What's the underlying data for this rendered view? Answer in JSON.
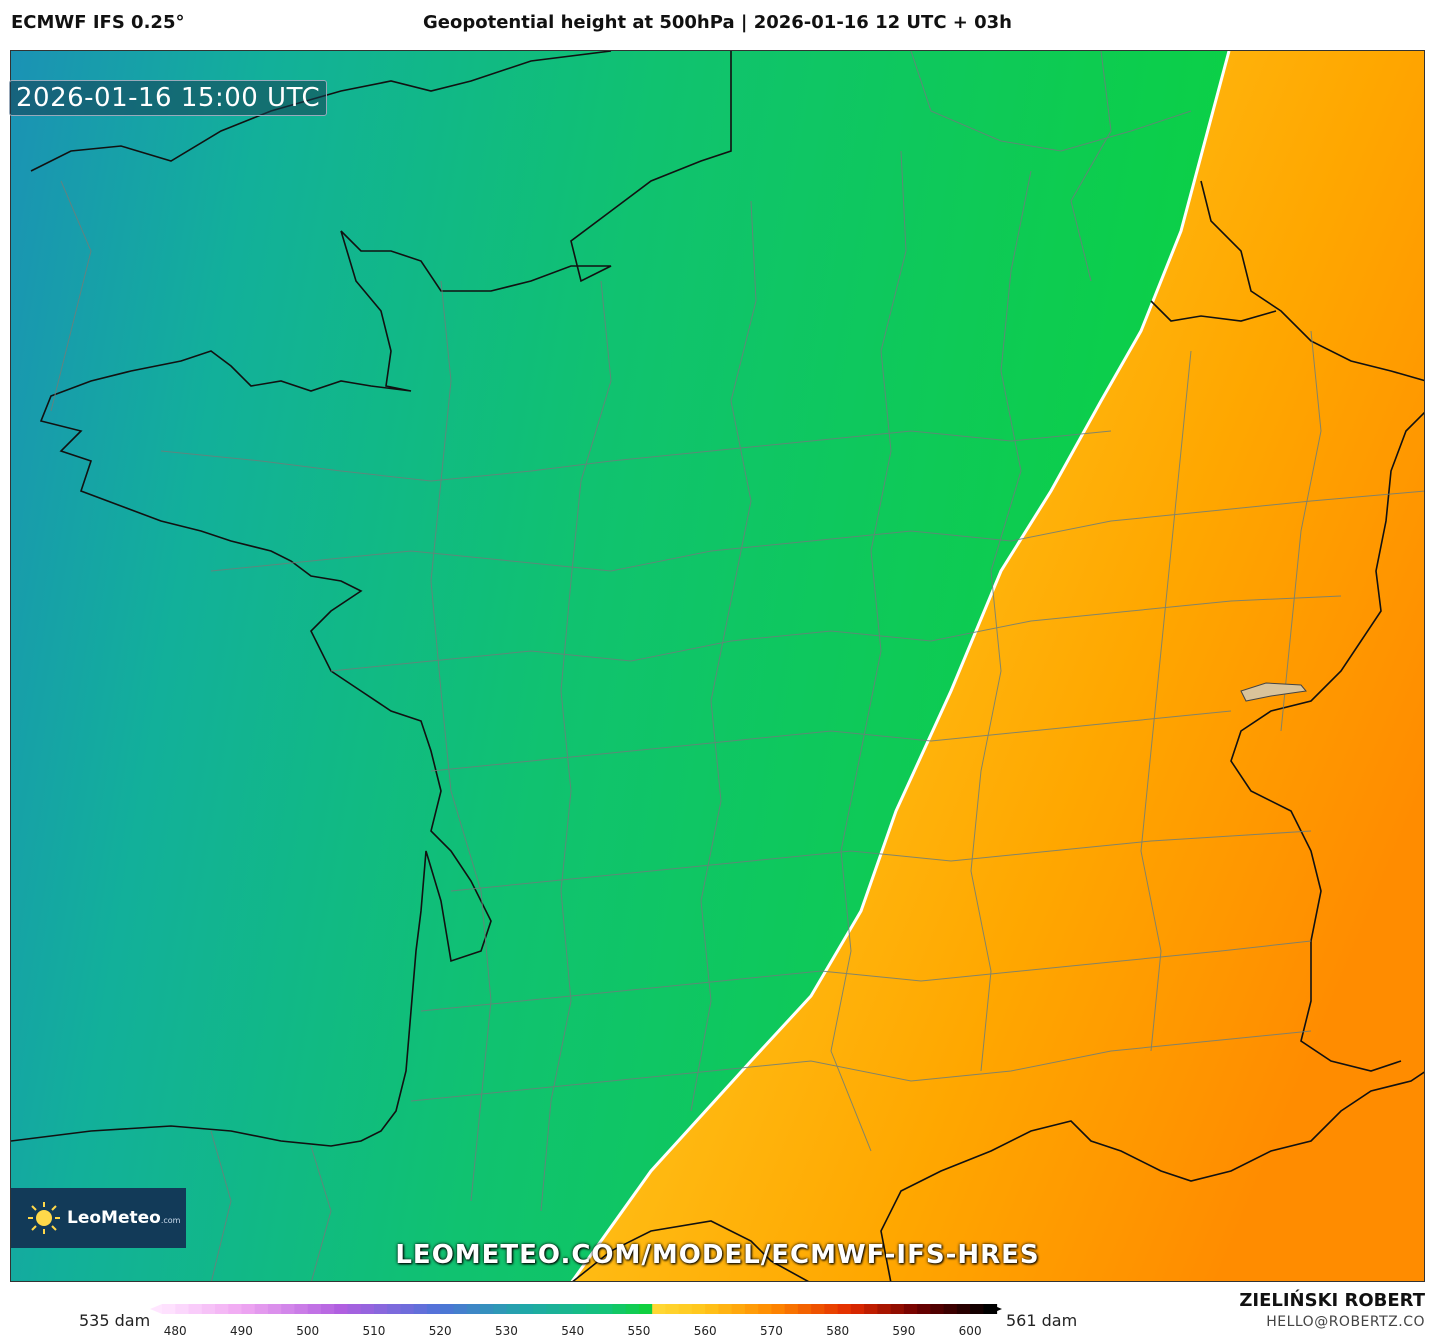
{
  "header": {
    "model": "ECMWF IFS 0.25°",
    "title": "Geopotential height at 500hPa | 2026-01-16 12 UTC + 03h"
  },
  "map": {
    "valid_time": "2026-01-16 15:00 UTC",
    "source_url": "LEOMETEO.COM/MODEL/ECMWF-IFS-HRES",
    "logo": {
      "name": "LeoMeteo",
      "suffix": ".com"
    }
  },
  "legend": {
    "min_label": "535 dam",
    "max_label": "561 dam",
    "ticks": [
      "480",
      "490",
      "500",
      "510",
      "520",
      "530",
      "540",
      "550",
      "560",
      "570",
      "580",
      "590",
      "600"
    ],
    "range": [
      478,
      603
    ],
    "stops": [
      {
        "v": 478,
        "c": "#ffe6ff"
      },
      {
        "v": 490,
        "c": "#f0a8f2"
      },
      {
        "v": 505,
        "c": "#b05fe0"
      },
      {
        "v": 520,
        "c": "#4f73d8"
      },
      {
        "v": 533,
        "c": "#1fa8a8"
      },
      {
        "v": 545,
        "c": "#12c478"
      },
      {
        "v": 551,
        "c": "#10d040"
      },
      {
        "v": 551.2,
        "c": "#ffdc3a"
      },
      {
        "v": 560,
        "c": "#ffc51a"
      },
      {
        "v": 570,
        "c": "#ff8a00"
      },
      {
        "v": 582,
        "c": "#e22a00"
      },
      {
        "v": 592,
        "c": "#6e0000"
      },
      {
        "v": 603,
        "c": "#000000"
      }
    ]
  },
  "credits": {
    "author": "ZIELIŃSKI ROBERT",
    "email": "HELLO@ROBERTZ.CO"
  },
  "colors": {
    "ocean_nw": "#1b94b8",
    "green_mid": "#10cc60",
    "green_bright": "#0ad43e",
    "yellow": "#ffd633",
    "orange": "#ffa600",
    "orange_deep": "#ff8c00"
  }
}
